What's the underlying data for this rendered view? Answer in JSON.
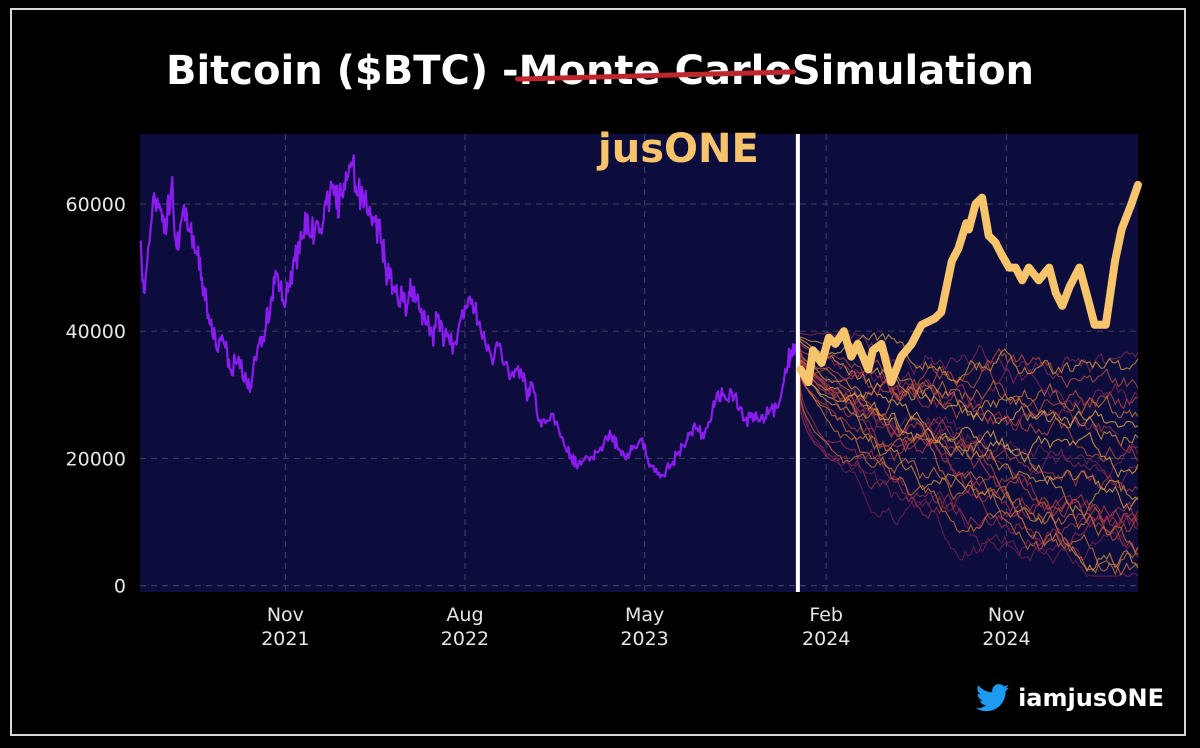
{
  "title": {
    "prefix": "Bitcoin ($BTC) - ",
    "struck": "Monte Carlo",
    "suffix": " Simulation"
  },
  "annotation": "jusONE",
  "handle": {
    "text": "iamjusONE",
    "icon": "twitter-bird-icon"
  },
  "colors": {
    "background": "#0d0d3d",
    "history_line": "#8b1cf0",
    "divider": "#ffffff",
    "annotation": "#f7c46c",
    "strike": "#c0272d",
    "grid": "#3a3a5a",
    "sim_palette": [
      "#e0a040",
      "#d87a3a",
      "#c4503a",
      "#a8324a",
      "#8a2a55",
      "#f0b050",
      "#b8403f",
      "#7a2450"
    ]
  },
  "chart_data": {
    "type": "line",
    "title": "Bitcoin ($BTC) - Monte Carlo Simulation",
    "xlabel": "",
    "ylabel": "",
    "ylim": [
      -1000,
      71000
    ],
    "xlim": [
      "2021-03-25",
      "2025-05-20"
    ],
    "yticks": [
      0,
      20000,
      40000,
      60000
    ],
    "xticks": [
      {
        "date": "2021-11-01",
        "label": [
          "Nov",
          "2021"
        ]
      },
      {
        "date": "2022-08-01",
        "label": [
          "Aug",
          "2022"
        ]
      },
      {
        "date": "2023-05-01",
        "label": [
          "May",
          "2023"
        ]
      },
      {
        "date": "2024-02-01",
        "label": [
          "Feb",
          "2024"
        ]
      },
      {
        "date": "2024-11-01",
        "label": [
          "Nov",
          "2024"
        ]
      }
    ],
    "grid": true,
    "split_date": "2023-12-20",
    "series": [
      {
        "role": "historical",
        "x": [
          "2021-03-25",
          "2021-04-01",
          "2021-04-14",
          "2021-04-25",
          "2021-05-05",
          "2021-05-12",
          "2021-05-20",
          "2021-05-28",
          "2021-06-07",
          "2021-06-20",
          "2021-06-30",
          "2021-07-10",
          "2021-07-20",
          "2021-07-31",
          "2021-08-10",
          "2021-08-22",
          "2021-09-05",
          "2021-09-12",
          "2021-09-22",
          "2021-10-01",
          "2021-10-10",
          "2021-10-20",
          "2021-10-28",
          "2021-11-08",
          "2021-11-15",
          "2021-11-28",
          "2021-12-05",
          "2021-12-15",
          "2021-12-28",
          "2022-01-05",
          "2022-01-15",
          "2022-01-22",
          "2022-02-01",
          "2022-02-10",
          "2022-02-20",
          "2022-03-01",
          "2022-03-15",
          "2022-03-28",
          "2022-04-05",
          "2022-04-15",
          "2022-04-28",
          "2022-05-05",
          "2022-05-12",
          "2022-05-25",
          "2022-06-05",
          "2022-06-13",
          "2022-06-18",
          "2022-07-01",
          "2022-07-15",
          "2022-07-30",
          "2022-08-12",
          "2022-08-25",
          "2022-09-10",
          "2022-09-25",
          "2022-10-10",
          "2022-10-25",
          "2022-11-05",
          "2022-11-09",
          "2022-11-25",
          "2022-12-10",
          "2022-12-30",
          "2023-01-10",
          "2023-01-20",
          "2023-02-05",
          "2023-02-16",
          "2023-03-05",
          "2023-03-10",
          "2023-03-20",
          "2023-04-01",
          "2023-04-14",
          "2023-04-25",
          "2023-05-10",
          "2023-05-25",
          "2023-06-10",
          "2023-06-22",
          "2023-07-05",
          "2023-07-14",
          "2023-07-28",
          "2023-08-10",
          "2023-08-17",
          "2023-08-30",
          "2023-09-15",
          "2023-09-30",
          "2023-10-15",
          "2023-10-24",
          "2023-11-05",
          "2023-11-20",
          "2023-12-05",
          "2023-12-10",
          "2023-12-20"
        ],
        "y": [
          54000,
          46000,
          61000,
          59000,
          57000,
          63000,
          53000,
          58000,
          56000,
          52000,
          47000,
          41000,
          37000,
          38000,
          34000,
          36000,
          31000,
          33000,
          38000,
          40000,
          45000,
          49000,
          45000,
          47000,
          51000,
          55000,
          58000,
          55000,
          57000,
          60000,
          62000,
          60000,
          65000,
          66000,
          62000,
          60000,
          58000,
          54000,
          49000,
          47000,
          45000,
          44000,
          47000,
          43000,
          41000,
          39000,
          43000,
          39000,
          38000,
          42000,
          45000,
          40000,
          36000,
          37000,
          33000,
          34000,
          30000,
          32000,
          25000,
          27000,
          22000,
          20000,
          19000,
          20000,
          21000,
          23000,
          24000,
          22000,
          20000,
          22000,
          23000,
          19000,
          17000,
          19000,
          21000,
          23000,
          25000,
          24000,
          26000,
          29000,
          30000,
          30000,
          26000,
          27000,
          26000,
          27000,
          28000,
          35000,
          37000,
          38000
        ]
      },
      {
        "role": "hand-drawn",
        "x": [
          "2023-12-24",
          "2024-01-05",
          "2024-01-12",
          "2024-01-25",
          "2024-02-05",
          "2024-02-15",
          "2024-02-28",
          "2024-03-10",
          "2024-03-20",
          "2024-04-05",
          "2024-04-12",
          "2024-04-25",
          "2024-05-10",
          "2024-05-25",
          "2024-06-10",
          "2024-06-25",
          "2024-07-15",
          "2024-07-25",
          "2024-08-10",
          "2024-08-20",
          "2024-09-01",
          "2024-09-05",
          "2024-09-15",
          "2024-09-25",
          "2024-10-05",
          "2024-10-15",
          "2024-10-25",
          "2024-11-05",
          "2024-11-15",
          "2024-11-25",
          "2024-12-05",
          "2024-12-20",
          "2025-01-05",
          "2025-01-15",
          "2025-01-25",
          "2025-02-05",
          "2025-02-20",
          "2025-03-05",
          "2025-03-15",
          "2025-04-01",
          "2025-04-15",
          "2025-04-25",
          "2025-05-10",
          "2025-05-20"
        ],
        "y": [
          34000,
          32000,
          37000,
          35000,
          39000,
          38000,
          40000,
          36000,
          38000,
          34000,
          37000,
          38000,
          32000,
          36000,
          38000,
          41000,
          42000,
          43000,
          51000,
          53000,
          57000,
          56000,
          60000,
          61000,
          55000,
          54000,
          52000,
          50000,
          50000,
          48000,
          50000,
          48000,
          50000,
          46000,
          44000,
          47000,
          50000,
          45000,
          41000,
          41000,
          51000,
          56000,
          60000,
          63000
        ]
      }
    ],
    "simulation": {
      "count": 28,
      "start": {
        "x": "2023-12-20",
        "y": 38000
      },
      "end_x": "2025-05-20",
      "end_range": [
        2000,
        36000
      ]
    }
  }
}
